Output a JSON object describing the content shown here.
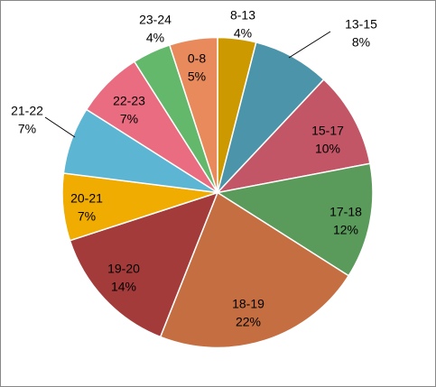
{
  "chart_data": {
    "type": "pie",
    "categories": [
      "8-13",
      "13-15",
      "15-17",
      "17-18",
      "18-19",
      "19-20",
      "20-21",
      "21-22",
      "22-23",
      "23-24",
      "0-8"
    ],
    "values": [
      4,
      8,
      10,
      12,
      22,
      14,
      7,
      7,
      7,
      4,
      5
    ],
    "value_labels": [
      "4%",
      "8%",
      "10%",
      "12%",
      "22%",
      "14%",
      "7%",
      "7%",
      "7%",
      "4%",
      "5%"
    ],
    "colors": [
      "#cc9900",
      "#4b94a9",
      "#c25566",
      "#5a9a5b",
      "#c46e41",
      "#a33b3b",
      "#f0ac00",
      "#5bb5d3",
      "#e96c81",
      "#63b86b",
      "#e88a5b"
    ]
  }
}
